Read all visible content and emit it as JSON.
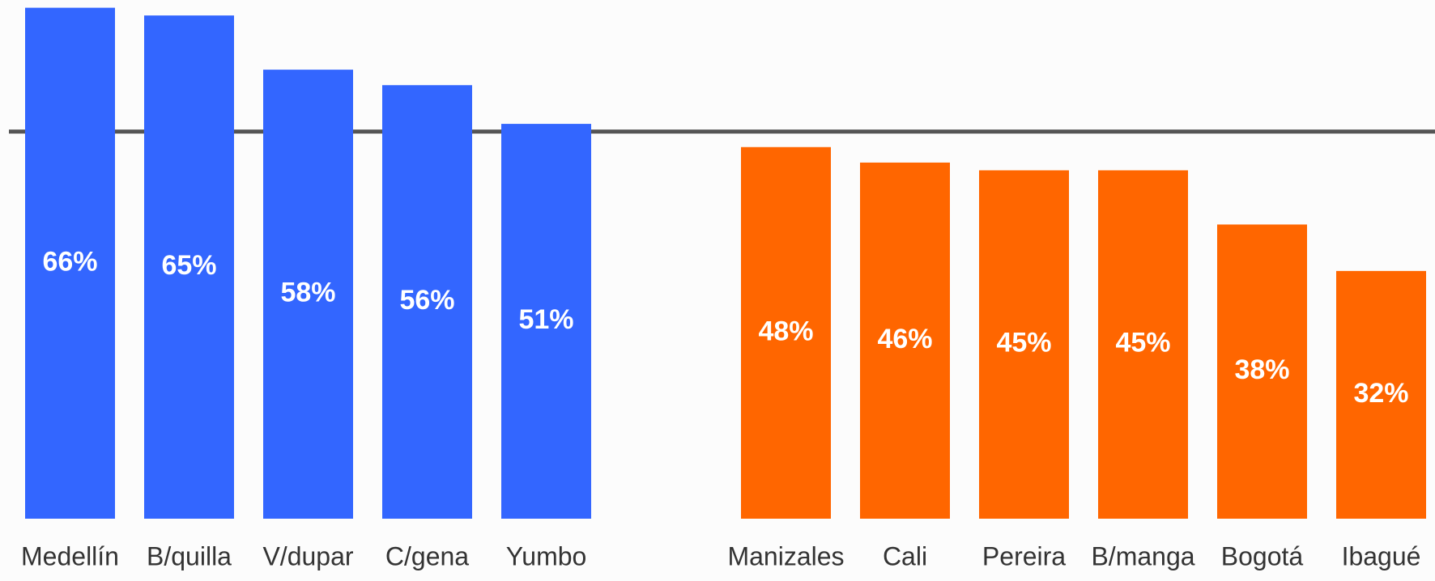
{
  "chart_data": {
    "type": "bar",
    "groups": [
      {
        "categories": [
          "Medellín",
          "B/quilla",
          "V/dupar",
          "C/gena",
          "Yumbo"
        ],
        "values": [
          66,
          65,
          58,
          56,
          51
        ],
        "value_labels": [
          "66%",
          "65%",
          "58%",
          "56%",
          "51%"
        ],
        "color": "#3366ff"
      },
      {
        "categories": [
          "Manizales",
          "Cali",
          "Pereira",
          "B/manga",
          "Bogotá",
          "Ibagué"
        ],
        "values": [
          48,
          46,
          45,
          45,
          38,
          32
        ],
        "value_labels": [
          "48%",
          "46%",
          "45%",
          "45%",
          "38%",
          "32%"
        ],
        "color": "#ff6600"
      }
    ],
    "reference_line": 50,
    "ylim": [
      0,
      67
    ]
  }
}
